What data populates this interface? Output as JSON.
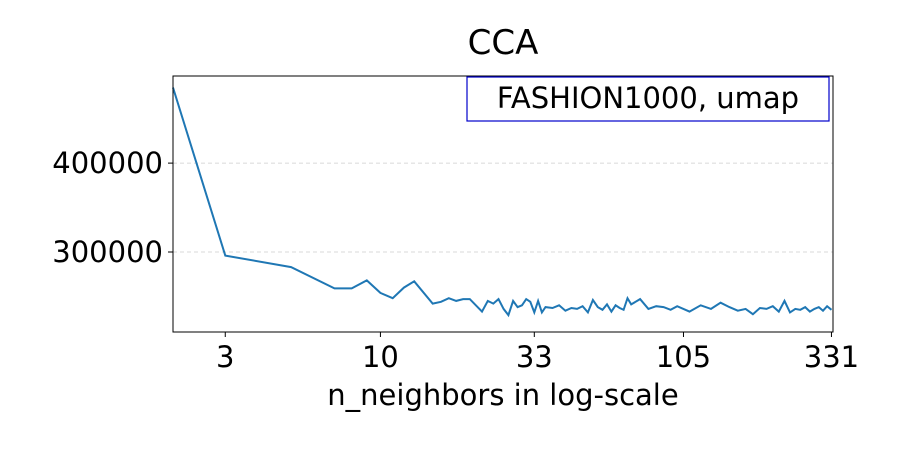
{
  "chart_data": {
    "type": "line",
    "title": "CCA",
    "annotation": "FASHION1000, umap",
    "xlabel": "n_neighbors in log-scale",
    "x": [
      2,
      3,
      5,
      7,
      8,
      9,
      10,
      11,
      12,
      13,
      15,
      16,
      17,
      18,
      19,
      20,
      22,
      23,
      24,
      25,
      26,
      27,
      28,
      29,
      30,
      31,
      32,
      33,
      34,
      35,
      36,
      38,
      40,
      42,
      44,
      46,
      48,
      50,
      52,
      54,
      56,
      58,
      60,
      62,
      64,
      66,
      68,
      70,
      75,
      80,
      85,
      90,
      95,
      100,
      110,
      120,
      130,
      140,
      150,
      160,
      170,
      180,
      190,
      200,
      210,
      220,
      230,
      240,
      250,
      260,
      270,
      280,
      290,
      300,
      310,
      320,
      331
    ],
    "series": [
      {
        "name": "CCA",
        "color": "#1f77b4",
        "values": [
          485000,
          296000,
          283000,
          259000,
          259000,
          268000,
          254000,
          248000,
          260000,
          267000,
          242000,
          244000,
          248000,
          245000,
          247000,
          247000,
          233000,
          245000,
          242000,
          247000,
          236000,
          229000,
          245000,
          238000,
          240000,
          247000,
          244000,
          232000,
          245000,
          232000,
          238000,
          237000,
          240000,
          234000,
          237000,
          236000,
          239000,
          232000,
          246000,
          238000,
          235000,
          241000,
          233000,
          240000,
          237000,
          235000,
          248000,
          241000,
          247000,
          236000,
          239000,
          238000,
          235000,
          239000,
          233000,
          240000,
          236000,
          243000,
          238000,
          234000,
          236000,
          230000,
          237000,
          236000,
          239000,
          233000,
          245000,
          232000,
          236000,
          235000,
          238000,
          233000,
          236000,
          238000,
          234000,
          239000,
          235000
        ]
      }
    ],
    "xlim": [
      2,
      335
    ],
    "ylim": [
      210000,
      498000
    ],
    "log_x": true,
    "xticks": [
      3,
      10,
      33,
      105,
      331
    ],
    "yticks": [
      300000,
      400000
    ],
    "grid": true
  }
}
